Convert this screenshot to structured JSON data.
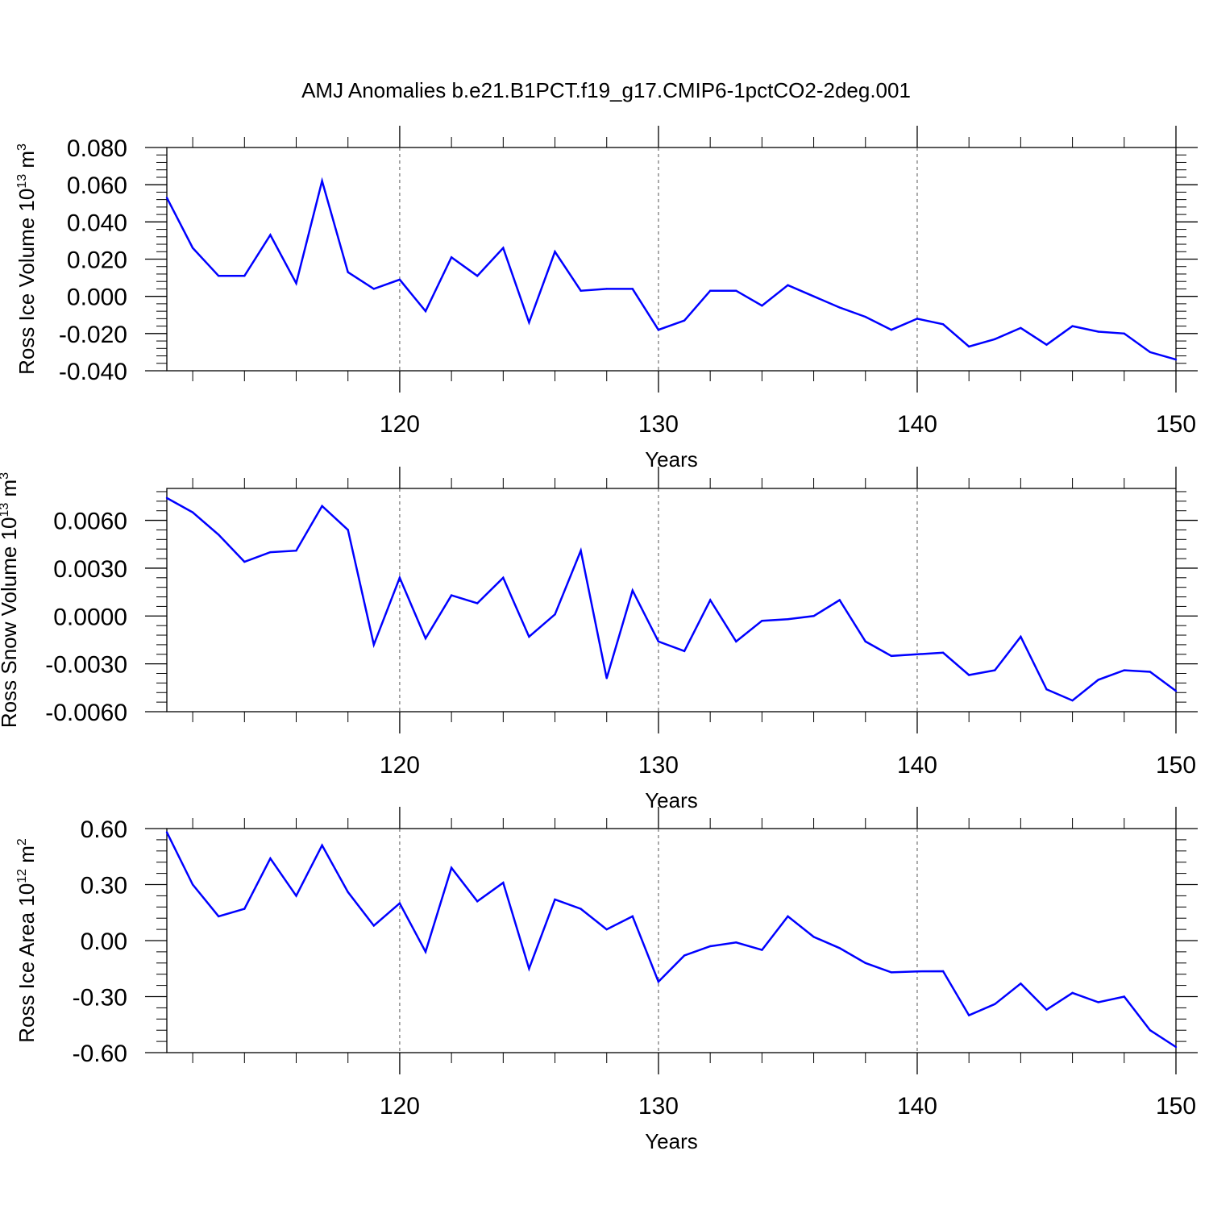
{
  "title": "AMJ Anomalies b.e21.B1PCT.f19_g17.CMIP6-1pctCO2-2deg.001",
  "line_color": "#0000ff",
  "chart_data": [
    {
      "type": "line",
      "xlabel": "Years",
      "ylabel": {
        "main": "Ross Ice Volume 10",
        "exp": "13",
        "unit": " m",
        "unit_exp": "3"
      },
      "xlim": [
        111,
        150
      ],
      "ylim": [
        -0.04,
        0.08
      ],
      "xticks": [
        120,
        130,
        140,
        150
      ],
      "xtick_labels": [
        "120",
        "130",
        "140",
        "150"
      ],
      "yticks": [
        -0.04,
        -0.02,
        0.0,
        0.02,
        0.04,
        0.06,
        0.08
      ],
      "ytick_labels": [
        "-0.040",
        "-0.020",
        "0.000",
        "0.020",
        "0.040",
        "0.060",
        "0.080"
      ],
      "grid_x": [
        120,
        130,
        140
      ],
      "series": [
        {
          "x": [
            111,
            112,
            113,
            114,
            115,
            116,
            117,
            118,
            119,
            120,
            121,
            122,
            123,
            124,
            125,
            126,
            127,
            128,
            129,
            130,
            131,
            132,
            133,
            134,
            135,
            136,
            137,
            138,
            139,
            140,
            141,
            142,
            143,
            144,
            145,
            146,
            147,
            148,
            149,
            150
          ],
          "values": [
            0.053,
            0.026,
            0.011,
            0.011,
            0.033,
            0.007,
            0.062,
            0.013,
            0.004,
            0.009,
            -0.008,
            0.021,
            0.011,
            0.026,
            -0.014,
            0.024,
            0.003,
            0.004,
            0.004,
            -0.018,
            -0.013,
            0.003,
            0.003,
            -0.005,
            0.006,
            0.0,
            -0.006,
            -0.011,
            -0.018,
            -0.012,
            -0.015,
            -0.027,
            -0.023,
            -0.017,
            -0.026,
            -0.016,
            -0.019,
            -0.02,
            -0.03,
            -0.034
          ]
        }
      ]
    },
    {
      "type": "line",
      "xlabel": "Years",
      "ylabel": {
        "main": "Ross Snow Volume 10",
        "exp": "13",
        "unit": " m",
        "unit_exp": "3"
      },
      "xlim": [
        111,
        150
      ],
      "ylim": [
        -0.006,
        0.008
      ],
      "xticks": [
        120,
        130,
        140,
        150
      ],
      "xtick_labels": [
        "120",
        "130",
        "140",
        "150"
      ],
      "yticks": [
        -0.006,
        -0.003,
        0.0,
        0.003,
        0.006
      ],
      "ytick_labels": [
        "-0.0060",
        "-0.0030",
        "0.0000",
        "0.0030",
        "0.0060"
      ],
      "grid_x": [
        120,
        130,
        140
      ],
      "series": [
        {
          "x": [
            111,
            112,
            113,
            114,
            115,
            116,
            117,
            118,
            119,
            120,
            121,
            122,
            123,
            124,
            125,
            126,
            127,
            128,
            129,
            130,
            131,
            132,
            133,
            134,
            135,
            136,
            137,
            138,
            139,
            140,
            141,
            142,
            143,
            144,
            145,
            146,
            147,
            148,
            149,
            150
          ],
          "values": [
            0.0074,
            0.0065,
            0.0051,
            0.0034,
            0.004,
            0.0041,
            0.0069,
            0.0054,
            -0.0018,
            0.0024,
            -0.0014,
            0.0013,
            0.0008,
            0.0024,
            -0.0013,
            0.0001,
            0.0041,
            -0.0039,
            0.0016,
            -0.0016,
            -0.0022,
            0.001,
            -0.0016,
            -0.0003,
            -0.0002,
            0.0,
            0.001,
            -0.0016,
            -0.0025,
            -0.0024,
            -0.0023,
            -0.0037,
            -0.0034,
            -0.0013,
            -0.0046,
            -0.0053,
            -0.004,
            -0.0034,
            -0.0035,
            -0.0047
          ]
        }
      ]
    },
    {
      "type": "line",
      "xlabel": "Years",
      "ylabel": {
        "main": "Ross Ice Area 10",
        "exp": "12",
        "unit": " m",
        "unit_exp": "2"
      },
      "xlim": [
        111,
        150
      ],
      "ylim": [
        -0.6,
        0.6
      ],
      "xticks": [
        120,
        130,
        140,
        150
      ],
      "xtick_labels": [
        "120",
        "130",
        "140",
        "150"
      ],
      "yticks": [
        -0.6,
        -0.3,
        0.0,
        0.3,
        0.6
      ],
      "ytick_labels": [
        "-0.60",
        "-0.30",
        "0.00",
        "0.30",
        "0.60"
      ],
      "grid_x": [
        120,
        130,
        140
      ],
      "series": [
        {
          "x": [
            111,
            112,
            113,
            114,
            115,
            116,
            117,
            118,
            119,
            120,
            121,
            122,
            123,
            124,
            125,
            126,
            127,
            128,
            129,
            130,
            131,
            132,
            133,
            134,
            135,
            136,
            137,
            138,
            139,
            140,
            141,
            142,
            143,
            144,
            145,
            146,
            147,
            148,
            149,
            150
          ],
          "values": [
            0.58,
            0.3,
            0.13,
            0.17,
            0.44,
            0.24,
            0.51,
            0.26,
            0.08,
            0.2,
            -0.06,
            0.39,
            0.21,
            0.31,
            -0.15,
            0.22,
            0.17,
            0.06,
            0.13,
            -0.22,
            -0.08,
            -0.03,
            -0.01,
            -0.05,
            0.13,
            0.02,
            -0.04,
            -0.12,
            -0.17,
            -0.165,
            -0.164,
            -0.4,
            -0.34,
            -0.23,
            -0.37,
            -0.28,
            -0.33,
            -0.3,
            -0.48,
            -0.57
          ]
        }
      ]
    }
  ]
}
